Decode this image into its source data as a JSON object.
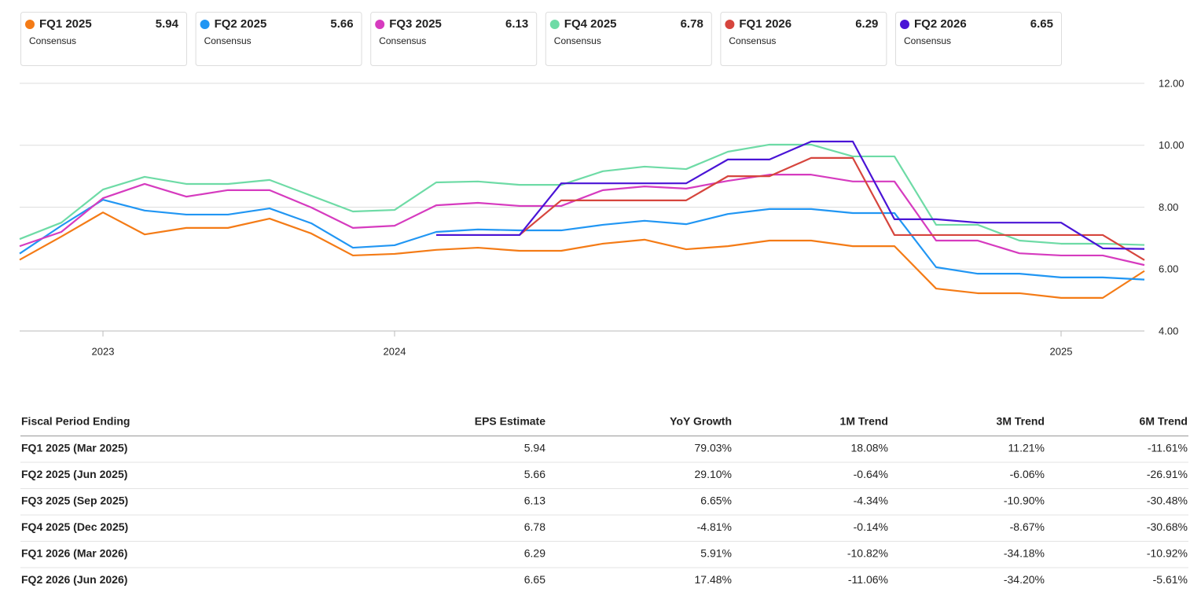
{
  "cards": [
    {
      "name": "FQ1 2025",
      "value": 5.94,
      "label": "Consensus",
      "color": "#f47b16"
    },
    {
      "name": "FQ2 2025",
      "value": 5.66,
      "label": "Consensus",
      "color": "#2196f3"
    },
    {
      "name": "FQ3 2025",
      "value": 6.13,
      "label": "Consensus",
      "color": "#d63bbf"
    },
    {
      "name": "FQ4 2025",
      "value": 6.78,
      "label": "Consensus",
      "color": "#6edba6"
    },
    {
      "name": "FQ1 2026",
      "value": 6.29,
      "label": "Consensus",
      "color": "#d6453d"
    },
    {
      "name": "FQ2 2026",
      "value": 6.65,
      "label": "Consensus",
      "color": "#4a14d6"
    }
  ],
  "chart_data": {
    "type": "line",
    "categories": [
      null,
      null,
      "2023",
      null,
      null,
      null,
      null,
      null,
      null,
      "2024",
      null,
      null,
      null,
      null,
      null,
      null,
      null,
      null,
      null,
      null,
      null,
      null,
      null,
      null,
      null,
      "2025",
      null,
      null
    ],
    "series": [
      {
        "name": "FQ1 2025",
        "color": "#f47b16",
        "values": [
          6.3,
          7.05,
          7.83,
          7.12,
          7.33,
          7.33,
          7.63,
          7.15,
          6.44,
          6.49,
          6.62,
          6.69,
          6.59,
          6.59,
          6.82,
          6.95,
          6.64,
          6.74,
          6.92,
          6.92,
          6.74,
          6.74,
          5.37,
          5.22,
          5.22,
          5.07,
          5.07,
          5.94
        ]
      },
      {
        "name": "FQ2 2025",
        "color": "#2196f3",
        "values": [
          6.5,
          7.4,
          8.24,
          7.89,
          7.76,
          7.76,
          7.96,
          7.48,
          6.69,
          6.77,
          7.2,
          7.28,
          7.25,
          7.25,
          7.43,
          7.56,
          7.45,
          7.78,
          7.94,
          7.94,
          7.81,
          7.81,
          6.06,
          5.85,
          5.85,
          5.73,
          5.73,
          5.66
        ]
      },
      {
        "name": "FQ3 2025",
        "color": "#d63bbf",
        "values": [
          6.74,
          7.2,
          8.29,
          8.75,
          8.34,
          8.55,
          8.55,
          7.99,
          7.33,
          7.4,
          8.06,
          8.14,
          8.04,
          8.04,
          8.55,
          8.67,
          8.6,
          8.85,
          9.05,
          9.05,
          8.83,
          8.83,
          6.92,
          6.92,
          6.51,
          6.44,
          6.44,
          6.13
        ]
      },
      {
        "name": "FQ4 2025",
        "color": "#6edba6",
        "values": [
          6.97,
          7.5,
          8.57,
          8.98,
          8.75,
          8.75,
          8.88,
          8.37,
          7.86,
          7.91,
          8.8,
          8.83,
          8.72,
          8.72,
          9.16,
          9.31,
          9.23,
          9.79,
          10.02,
          10.02,
          9.64,
          9.64,
          7.43,
          7.43,
          6.92,
          6.82,
          6.82,
          6.78
        ]
      },
      {
        "name": "FQ1 2026",
        "color": "#d6453d",
        "values": [
          null,
          null,
          null,
          null,
          null,
          null,
          null,
          null,
          null,
          null,
          7.1,
          7.1,
          7.1,
          8.22,
          8.22,
          8.22,
          8.22,
          9.0,
          9.0,
          9.59,
          9.59,
          7.1,
          7.1,
          7.1,
          7.1,
          7.1,
          7.1,
          6.29
        ]
      },
      {
        "name": "FQ2 2026",
        "color": "#4a14d6",
        "values": [
          null,
          null,
          null,
          null,
          null,
          null,
          null,
          null,
          null,
          null,
          7.1,
          7.1,
          7.1,
          8.77,
          8.77,
          8.77,
          8.77,
          9.54,
          9.54,
          10.12,
          10.12,
          7.61,
          7.61,
          7.5,
          7.5,
          7.5,
          6.67,
          6.65
        ]
      }
    ],
    "ylim": [
      4,
      12
    ],
    "yticks": [
      {
        "value": 4,
        "label": "4.00"
      },
      {
        "value": 6,
        "label": "6.00"
      },
      {
        "value": 8,
        "label": "8.00"
      },
      {
        "value": 10,
        "label": "10.00"
      },
      {
        "value": 12,
        "label": "12.00"
      }
    ],
    "grid": true
  },
  "table": {
    "header": [
      "Fiscal Period Ending",
      "EPS Estimate",
      "YoY Growth",
      "1M Trend",
      "3M Trend",
      "6M Trend"
    ],
    "rows": [
      [
        "FQ1 2025 (Mar 2025)",
        "5.94",
        "79.03%",
        "18.08%",
        "11.21%",
        "-11.61%"
      ],
      [
        "FQ2 2025 (Jun 2025)",
        "5.66",
        "29.10%",
        "-0.64%",
        "-6.06%",
        "-26.91%"
      ],
      [
        "FQ3 2025 (Sep 2025)",
        "6.13",
        "6.65%",
        "-4.34%",
        "-10.90%",
        "-30.48%"
      ],
      [
        "FQ4 2025 (Dec 2025)",
        "6.78",
        "-4.81%",
        "-0.14%",
        "-8.67%",
        "-30.68%"
      ],
      [
        "FQ1 2026 (Mar 2026)",
        "6.29",
        "5.91%",
        "-10.82%",
        "-34.18%",
        "-10.92%"
      ],
      [
        "FQ2 2026 (Jun 2026)",
        "6.65",
        "17.48%",
        "-11.06%",
        "-34.20%",
        "-5.61%"
      ]
    ]
  }
}
